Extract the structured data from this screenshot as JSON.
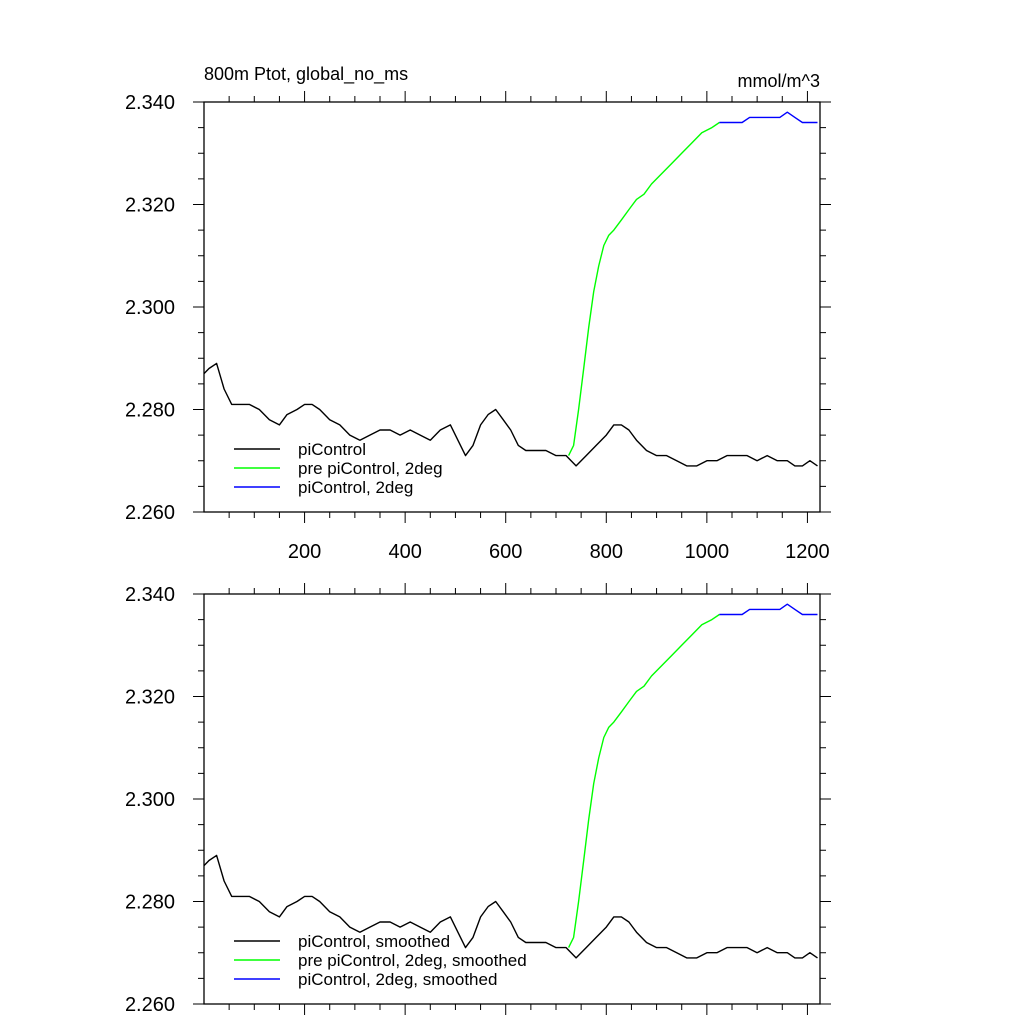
{
  "chart_data": [
    {
      "type": "line",
      "title": "800m Ptot, global_no_ms",
      "units": "mmol/m^3",
      "xlim": [
        0,
        1225
      ],
      "ylim": [
        2.26,
        2.34
      ],
      "xticks": [
        200,
        400,
        600,
        800,
        1000,
        1200
      ],
      "xtick_labels": [
        "200",
        "400",
        "600",
        "800",
        "1000",
        "1200"
      ],
      "yticks": [
        2.26,
        2.28,
        2.3,
        2.32,
        2.34
      ],
      "ytick_labels": [
        "2.260",
        "2.280",
        "2.300",
        "2.320",
        "2.340"
      ],
      "legend_position": "bottom-left",
      "series": [
        {
          "name": "piControl",
          "color": "#000000",
          "x": [
            0,
            10,
            25,
            40,
            55,
            70,
            90,
            110,
            130,
            150,
            165,
            185,
            200,
            215,
            230,
            250,
            270,
            290,
            310,
            330,
            350,
            370,
            390,
            410,
            430,
            450,
            470,
            490,
            505,
            520,
            535,
            550,
            565,
            580,
            595,
            610,
            625,
            640,
            660,
            680,
            700,
            720,
            740,
            760,
            780,
            800,
            815,
            830,
            845,
            860,
            880,
            900,
            920,
            940,
            960,
            980,
            1000,
            1020,
            1040,
            1060,
            1080,
            1100,
            1120,
            1140,
            1160,
            1175,
            1190,
            1205,
            1220
          ],
          "values": [
            2.287,
            2.288,
            2.289,
            2.284,
            2.281,
            2.281,
            2.281,
            2.28,
            2.278,
            2.277,
            2.279,
            2.28,
            2.281,
            2.281,
            2.28,
            2.278,
            2.277,
            2.275,
            2.274,
            2.275,
            2.276,
            2.276,
            2.275,
            2.276,
            2.275,
            2.274,
            2.276,
            2.277,
            2.274,
            2.271,
            2.273,
            2.277,
            2.279,
            2.28,
            2.278,
            2.276,
            2.273,
            2.272,
            2.272,
            2.272,
            2.271,
            2.271,
            2.269,
            2.271,
            2.273,
            2.275,
            2.277,
            2.277,
            2.276,
            2.274,
            2.272,
            2.271,
            2.271,
            2.27,
            2.269,
            2.269,
            2.27,
            2.27,
            2.271,
            2.271,
            2.271,
            2.27,
            2.271,
            2.27,
            2.27,
            2.269,
            2.269,
            2.27,
            2.269
          ]
        },
        {
          "name": "pre piControl, 2deg",
          "color": "#00ff00",
          "x": [
            725,
            735,
            745,
            755,
            765,
            775,
            785,
            795,
            805,
            815,
            830,
            845,
            860,
            875,
            890,
            910,
            930,
            950,
            970,
            990,
            1010,
            1025
          ],
          "values": [
            2.271,
            2.273,
            2.28,
            2.288,
            2.296,
            2.303,
            2.308,
            2.312,
            2.314,
            2.315,
            2.317,
            2.319,
            2.321,
            2.322,
            2.324,
            2.326,
            2.328,
            2.33,
            2.332,
            2.334,
            2.335,
            2.336
          ]
        },
        {
          "name": "piControl, 2deg",
          "color": "#0000ff",
          "x": [
            1025,
            1040,
            1055,
            1070,
            1085,
            1100,
            1115,
            1130,
            1145,
            1160,
            1175,
            1190,
            1205,
            1220
          ],
          "values": [
            2.336,
            2.336,
            2.336,
            2.336,
            2.337,
            2.337,
            2.337,
            2.337,
            2.337,
            2.338,
            2.337,
            2.336,
            2.336,
            2.336
          ]
        }
      ]
    },
    {
      "type": "line",
      "xlim": [
        0,
        1225
      ],
      "ylim": [
        2.26,
        2.34
      ],
      "xticks": [
        200,
        400,
        600,
        800,
        1000,
        1200
      ],
      "yticks": [
        2.26,
        2.28,
        2.3,
        2.32,
        2.34
      ],
      "ytick_labels": [
        "2.260",
        "2.280",
        "2.300",
        "2.320",
        "2.340"
      ],
      "legend_position": "bottom-left",
      "series": [
        {
          "name": "piControl, smoothed",
          "color": "#000000",
          "x": [
            0,
            10,
            25,
            40,
            55,
            70,
            90,
            110,
            130,
            150,
            165,
            185,
            200,
            215,
            230,
            250,
            270,
            290,
            310,
            330,
            350,
            370,
            390,
            410,
            430,
            450,
            470,
            490,
            505,
            520,
            535,
            550,
            565,
            580,
            595,
            610,
            625,
            640,
            660,
            680,
            700,
            720,
            740,
            760,
            780,
            800,
            815,
            830,
            845,
            860,
            880,
            900,
            920,
            940,
            960,
            980,
            1000,
            1020,
            1040,
            1060,
            1080,
            1100,
            1120,
            1140,
            1160,
            1175,
            1190,
            1205,
            1220
          ],
          "values": [
            2.287,
            2.288,
            2.289,
            2.284,
            2.281,
            2.281,
            2.281,
            2.28,
            2.278,
            2.277,
            2.279,
            2.28,
            2.281,
            2.281,
            2.28,
            2.278,
            2.277,
            2.275,
            2.274,
            2.275,
            2.276,
            2.276,
            2.275,
            2.276,
            2.275,
            2.274,
            2.276,
            2.277,
            2.274,
            2.271,
            2.273,
            2.277,
            2.279,
            2.28,
            2.278,
            2.276,
            2.273,
            2.272,
            2.272,
            2.272,
            2.271,
            2.271,
            2.269,
            2.271,
            2.273,
            2.275,
            2.277,
            2.277,
            2.276,
            2.274,
            2.272,
            2.271,
            2.271,
            2.27,
            2.269,
            2.269,
            2.27,
            2.27,
            2.271,
            2.271,
            2.271,
            2.27,
            2.271,
            2.27,
            2.27,
            2.269,
            2.269,
            2.27,
            2.269
          ]
        },
        {
          "name": "pre piControl, 2deg, smoothed",
          "color": "#00ff00",
          "x": [
            725,
            735,
            745,
            755,
            765,
            775,
            785,
            795,
            805,
            815,
            830,
            845,
            860,
            875,
            890,
            910,
            930,
            950,
            970,
            990,
            1010,
            1025
          ],
          "values": [
            2.271,
            2.273,
            2.28,
            2.288,
            2.296,
            2.303,
            2.308,
            2.312,
            2.314,
            2.315,
            2.317,
            2.319,
            2.321,
            2.322,
            2.324,
            2.326,
            2.328,
            2.33,
            2.332,
            2.334,
            2.335,
            2.336
          ]
        },
        {
          "name": "piControl, 2deg, smoothed",
          "color": "#0000ff",
          "x": [
            1025,
            1040,
            1055,
            1070,
            1085,
            1100,
            1115,
            1130,
            1145,
            1160,
            1175,
            1190,
            1205,
            1220
          ],
          "values": [
            2.336,
            2.336,
            2.336,
            2.336,
            2.337,
            2.337,
            2.337,
            2.337,
            2.337,
            2.338,
            2.337,
            2.336,
            2.336,
            2.336
          ]
        }
      ]
    }
  ]
}
